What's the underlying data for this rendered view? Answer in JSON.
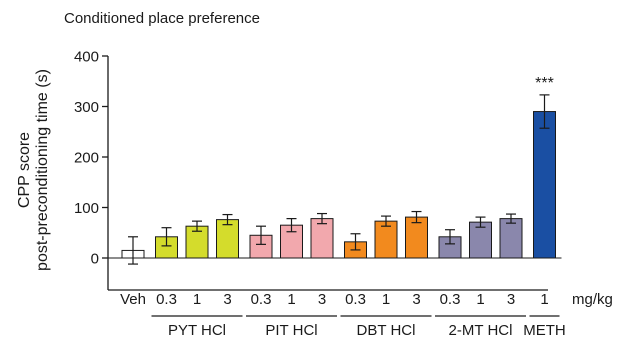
{
  "chart_data": {
    "type": "bar",
    "title": "Conditioned place preference",
    "ylabel_lines": [
      "CPP score",
      "post-preconditioning time (s)"
    ],
    "ylim": [
      -40,
      400
    ],
    "yticks": [
      0,
      100,
      200,
      300,
      400
    ],
    "unit_label": "mg/kg",
    "bars": [
      {
        "group": "Veh",
        "dose": "Veh",
        "value": 15,
        "error": 27,
        "color": "#ffffff"
      },
      {
        "group": "PYT HCl",
        "dose": "0.3",
        "value": 42,
        "error": 18,
        "color": "#d4dc2c"
      },
      {
        "group": "PYT HCl",
        "dose": "1",
        "value": 63,
        "error": 10,
        "color": "#d4dc2c"
      },
      {
        "group": "PYT HCl",
        "dose": "3",
        "value": 76,
        "error": 10,
        "color": "#d4dc2c"
      },
      {
        "group": "PIT HCl",
        "dose": "0.3",
        "value": 45,
        "error": 18,
        "color": "#f2a8ad"
      },
      {
        "group": "PIT HCl",
        "dose": "1",
        "value": 65,
        "error": 13,
        "color": "#f2a8ad"
      },
      {
        "group": "PIT HCl",
        "dose": "3",
        "value": 78,
        "error": 10,
        "color": "#f2a8ad"
      },
      {
        "group": "DBT HCl",
        "dose": "0.3",
        "value": 32,
        "error": 16,
        "color": "#f28a1e"
      },
      {
        "group": "DBT HCl",
        "dose": "1",
        "value": 73,
        "error": 10,
        "color": "#f28a1e"
      },
      {
        "group": "DBT HCl",
        "dose": "3",
        "value": 81,
        "error": 11,
        "color": "#f28a1e"
      },
      {
        "group": "2-MT HCl",
        "dose": "0.3",
        "value": 42,
        "error": 14,
        "color": "#8a87ac"
      },
      {
        "group": "2-MT HCl",
        "dose": "1",
        "value": 71,
        "error": 10,
        "color": "#8a87ac"
      },
      {
        "group": "2-MT HCl",
        "dose": "3",
        "value": 78,
        "error": 9,
        "color": "#8a87ac"
      },
      {
        "group": "METH",
        "dose": "1",
        "value": 290,
        "error": 33,
        "color": "#1a4fa3"
      }
    ],
    "groups": [
      {
        "label": "PYT HCl",
        "first": 1,
        "last": 3
      },
      {
        "label": "PIT HCl",
        "first": 4,
        "last": 6
      },
      {
        "label": "DBT HCl",
        "first": 7,
        "last": 9
      },
      {
        "label": "2-MT HCl",
        "first": 10,
        "last": 12
      },
      {
        "label": "METH",
        "first": 13,
        "last": 13
      }
    ],
    "annotations": [
      {
        "bar": 13,
        "text": "***"
      }
    ]
  }
}
